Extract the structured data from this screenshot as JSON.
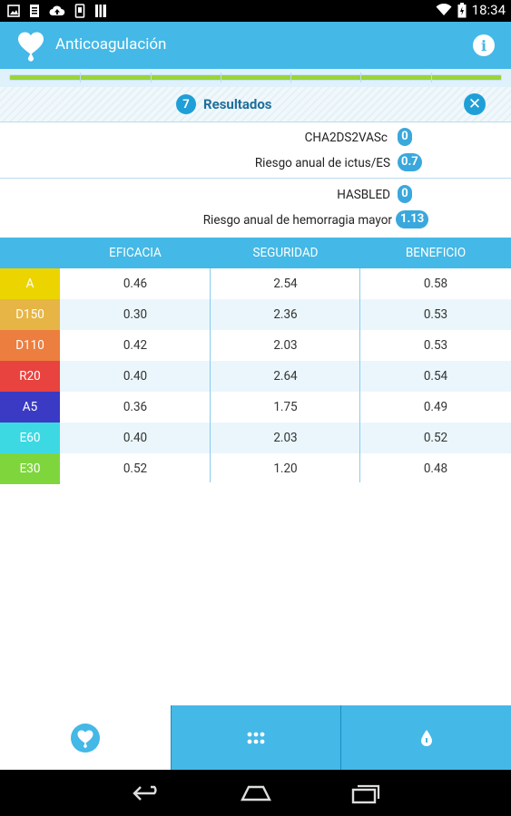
{
  "status_bar": {
    "time": "18:34",
    "left_icons": [
      "image-icon",
      "document-icon",
      "cloud-upload-icon",
      "phone-icon",
      "book-icon"
    ],
    "right_icons": [
      "wifi-icon",
      "battery-icon"
    ]
  },
  "app_bar": {
    "title": "Anticoagulación",
    "logo_icon": "heart-drop-logo-icon",
    "info_icon": "info-icon",
    "info_glyph": "i"
  },
  "progress": {
    "fraction": 1.0,
    "segments": 7
  },
  "results": {
    "count": "7",
    "label": "Resultados",
    "close_glyph": "✕"
  },
  "scores": {
    "stroke": [
      {
        "label": "CHA2DS2VASc",
        "value": "0"
      },
      {
        "label": "Riesgo anual de ictus/ES",
        "value": "0.7"
      }
    ],
    "bleeding": [
      {
        "label": "HASBLED",
        "value": "0"
      },
      {
        "label": "Riesgo anual de hemorragia mayor",
        "value": "1.13"
      }
    ]
  },
  "table": {
    "headers": [
      "EFICACIA",
      "SEGURIDAD",
      "BENEFICIO"
    ],
    "rows": [
      {
        "drug": "A",
        "color": "#ecd400",
        "values": [
          "0.46",
          "2.54",
          "0.58"
        ]
      },
      {
        "drug": "D150",
        "color": "#e6b545",
        "values": [
          "0.30",
          "2.36",
          "0.53"
        ]
      },
      {
        "drug": "D110",
        "color": "#ec7e3f",
        "values": [
          "0.42",
          "2.03",
          "0.53"
        ]
      },
      {
        "drug": "R20",
        "color": "#e8433f",
        "values": [
          "0.40",
          "2.64",
          "0.54"
        ]
      },
      {
        "drug": "A5",
        "color": "#3a3ac4",
        "values": [
          "0.36",
          "1.75",
          "0.49"
        ]
      },
      {
        "drug": "E60",
        "color": "#3dd9e3",
        "values": [
          "0.40",
          "2.03",
          "0.52"
        ]
      },
      {
        "drug": "E30",
        "color": "#7ed63c",
        "values": [
          "0.52",
          "1.20",
          "0.48"
        ]
      }
    ]
  },
  "bottom_nav": {
    "tabs": [
      {
        "icon": "heart-drop-icon",
        "active": true
      },
      {
        "icon": "grid-icon",
        "active": false
      },
      {
        "icon": "drop-icon",
        "active": false
      }
    ]
  },
  "system_nav": {
    "buttons": [
      "back-icon",
      "home-icon",
      "recent-apps-icon"
    ]
  },
  "colors": {
    "primary": "#44b8e6",
    "accent_dark": "#1f9fd8",
    "progress_fill": "#9ad43a",
    "alt_row": "#eaf6fc"
  }
}
